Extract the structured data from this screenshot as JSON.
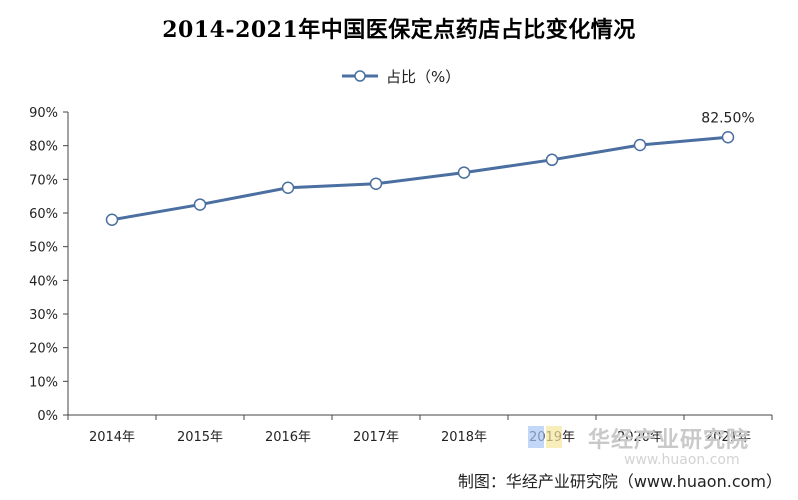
{
  "chart_data": {
    "type": "line",
    "title": "2014-2021年中国医保定点药店占比变化情况",
    "categories": [
      "2014年",
      "2015年",
      "2016年",
      "2017年",
      "2018年",
      "2019年",
      "2020年",
      "2021年"
    ],
    "series": [
      {
        "name": "占比（%）",
        "values": [
          58.0,
          62.5,
          67.5,
          68.7,
          72.0,
          75.8,
          80.2,
          82.5
        ]
      }
    ],
    "data_labels": [
      {
        "index": 7,
        "text": "82.50%"
      }
    ],
    "yticks": [
      "0%",
      "10%",
      "20%",
      "30%",
      "40%",
      "50%",
      "60%",
      "70%",
      "80%",
      "90%"
    ],
    "ylim": [
      0,
      90
    ],
    "grid": false,
    "legend_position": "top-center",
    "line_color": "#4a6fa0"
  },
  "watermark": {
    "brand": "华经产业研究院",
    "url": "www.huaon.com"
  },
  "credit": "制图：华经产业研究院（www.huaon.com）"
}
